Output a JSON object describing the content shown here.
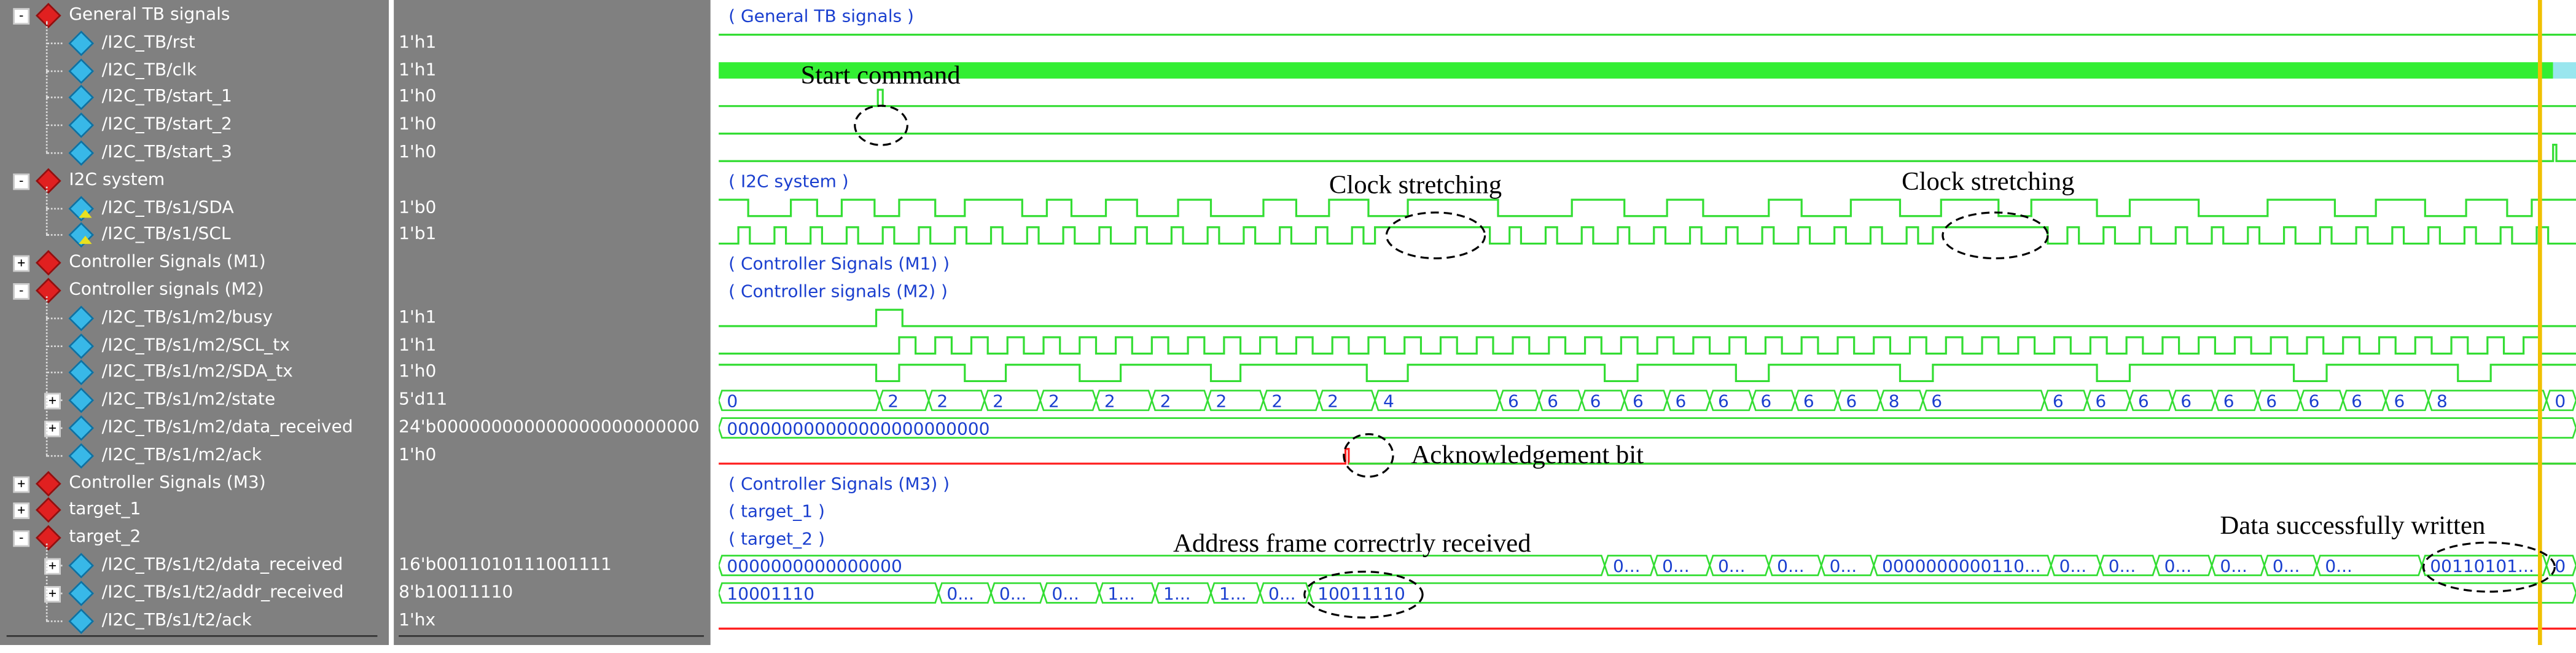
{
  "signals": [
    {
      "level": 0,
      "kind": "group",
      "toggle": "-",
      "name": "General TB signals",
      "value": "",
      "wave_label": "( General TB signals )"
    },
    {
      "level": 1,
      "kind": "signal",
      "name": "/I2C_TB/rst",
      "value": "1'h1"
    },
    {
      "level": 1,
      "kind": "signal",
      "name": "/I2C_TB/clk",
      "value": "1'h1"
    },
    {
      "level": 1,
      "kind": "signal",
      "name": "/I2C_TB/start_1",
      "value": "1'h0"
    },
    {
      "level": 1,
      "kind": "signal",
      "name": "/I2C_TB/start_2",
      "value": "1'h0"
    },
    {
      "level": 1,
      "kind": "signal",
      "name": "/I2C_TB/start_3",
      "value": "1'h0"
    },
    {
      "level": 0,
      "kind": "group",
      "toggle": "-",
      "name": "I2C system",
      "value": "",
      "wave_label": "( I2C system )"
    },
    {
      "level": 1,
      "kind": "inout",
      "name": "/I2C_TB/s1/SDA",
      "value": "1'b0"
    },
    {
      "level": 1,
      "kind": "inout",
      "name": "/I2C_TB/s1/SCL",
      "value": "1'b1"
    },
    {
      "level": 0,
      "kind": "group",
      "toggle": "+",
      "name": "Controller Signals (M1)",
      "value": "",
      "wave_label": "( Controller Signals (M1) )"
    },
    {
      "level": 0,
      "kind": "group",
      "toggle": "-",
      "name": "Controller signals (M2)",
      "value": "",
      "wave_label": "( Controller signals (M2) )"
    },
    {
      "level": 1,
      "kind": "signal",
      "name": "/I2C_TB/s1/m2/busy",
      "value": "1'h1"
    },
    {
      "level": 1,
      "kind": "signal",
      "name": "/I2C_TB/s1/m2/SCL_tx",
      "value": "1'h1"
    },
    {
      "level": 1,
      "kind": "signal",
      "name": "/I2C_TB/s1/m2/SDA_tx",
      "value": "1'h0"
    },
    {
      "level": 1,
      "kind": "bus",
      "toggle": "+",
      "name": "/I2C_TB/s1/m2/state",
      "value": "5'd11"
    },
    {
      "level": 1,
      "kind": "bus",
      "toggle": "+",
      "name": "/I2C_TB/s1/m2/data_received",
      "value": "24'b000000000000000000000000"
    },
    {
      "level": 1,
      "kind": "signal",
      "name": "/I2C_TB/s1/m2/ack",
      "value": "1'h0"
    },
    {
      "level": 0,
      "kind": "group",
      "toggle": "+",
      "name": "Controller Signals (M3)",
      "value": "",
      "wave_label": "( Controller Signals (M3) )"
    },
    {
      "level": 0,
      "kind": "group",
      "toggle": "+",
      "name": "target_1",
      "value": "",
      "wave_label": "( target_1 )"
    },
    {
      "level": 0,
      "kind": "group",
      "toggle": "-",
      "name": "target_2",
      "value": "",
      "wave_label": "( target_2 )"
    },
    {
      "level": 1,
      "kind": "bus",
      "toggle": "+",
      "name": "/I2C_TB/s1/t2/data_received",
      "value": "16'b0011010111001111"
    },
    {
      "level": 1,
      "kind": "bus",
      "toggle": "+",
      "name": "/I2C_TB/s1/t2/addr_received",
      "value": "8'b10011110"
    },
    {
      "level": 1,
      "kind": "signal",
      "name": "/I2C_TB/s1/t2/ack",
      "value": "1'hx"
    }
  ],
  "bus_labels": {
    "state": [
      "0",
      "2",
      "2",
      "2",
      "2",
      "2",
      "2",
      "2",
      "2",
      "2",
      "4",
      "6",
      "6",
      "6",
      "6",
      "6",
      "6",
      "6",
      "6",
      "6",
      "8",
      "6",
      "6",
      "6",
      "6",
      "6",
      "6",
      "6",
      "6",
      "6",
      "6",
      "8",
      "0"
    ],
    "m2_data_received": "000000000000000000000000",
    "t2_data_received": [
      "0000000000000000",
      "0...",
      "0...",
      "0...",
      "0...",
      "0...",
      "0000000000110...",
      "0...",
      "0...",
      "0...",
      "0...",
      "0...",
      "0...",
      "00110101...",
      "0"
    ],
    "t2_addr_received": [
      "10001110",
      "0...",
      "0...",
      "0...",
      "1...",
      "1...",
      "1...",
      "0...",
      "10011110"
    ]
  },
  "annotations": {
    "start_command": "Start command",
    "clock_stretching_1": "Clock stretching",
    "clock_stretching_2": "Clock stretching",
    "ack_bit": "Acknowledgement bit",
    "address_frame": "Address frame correctrly received",
    "data_written": "Data successfully written"
  },
  "colors": {
    "panel_bg": "#808080",
    "wave_green": "#33dd33",
    "wave_red": "#ff2020",
    "bus_text": "#1a3fcf",
    "cursor": "#f0c000"
  }
}
